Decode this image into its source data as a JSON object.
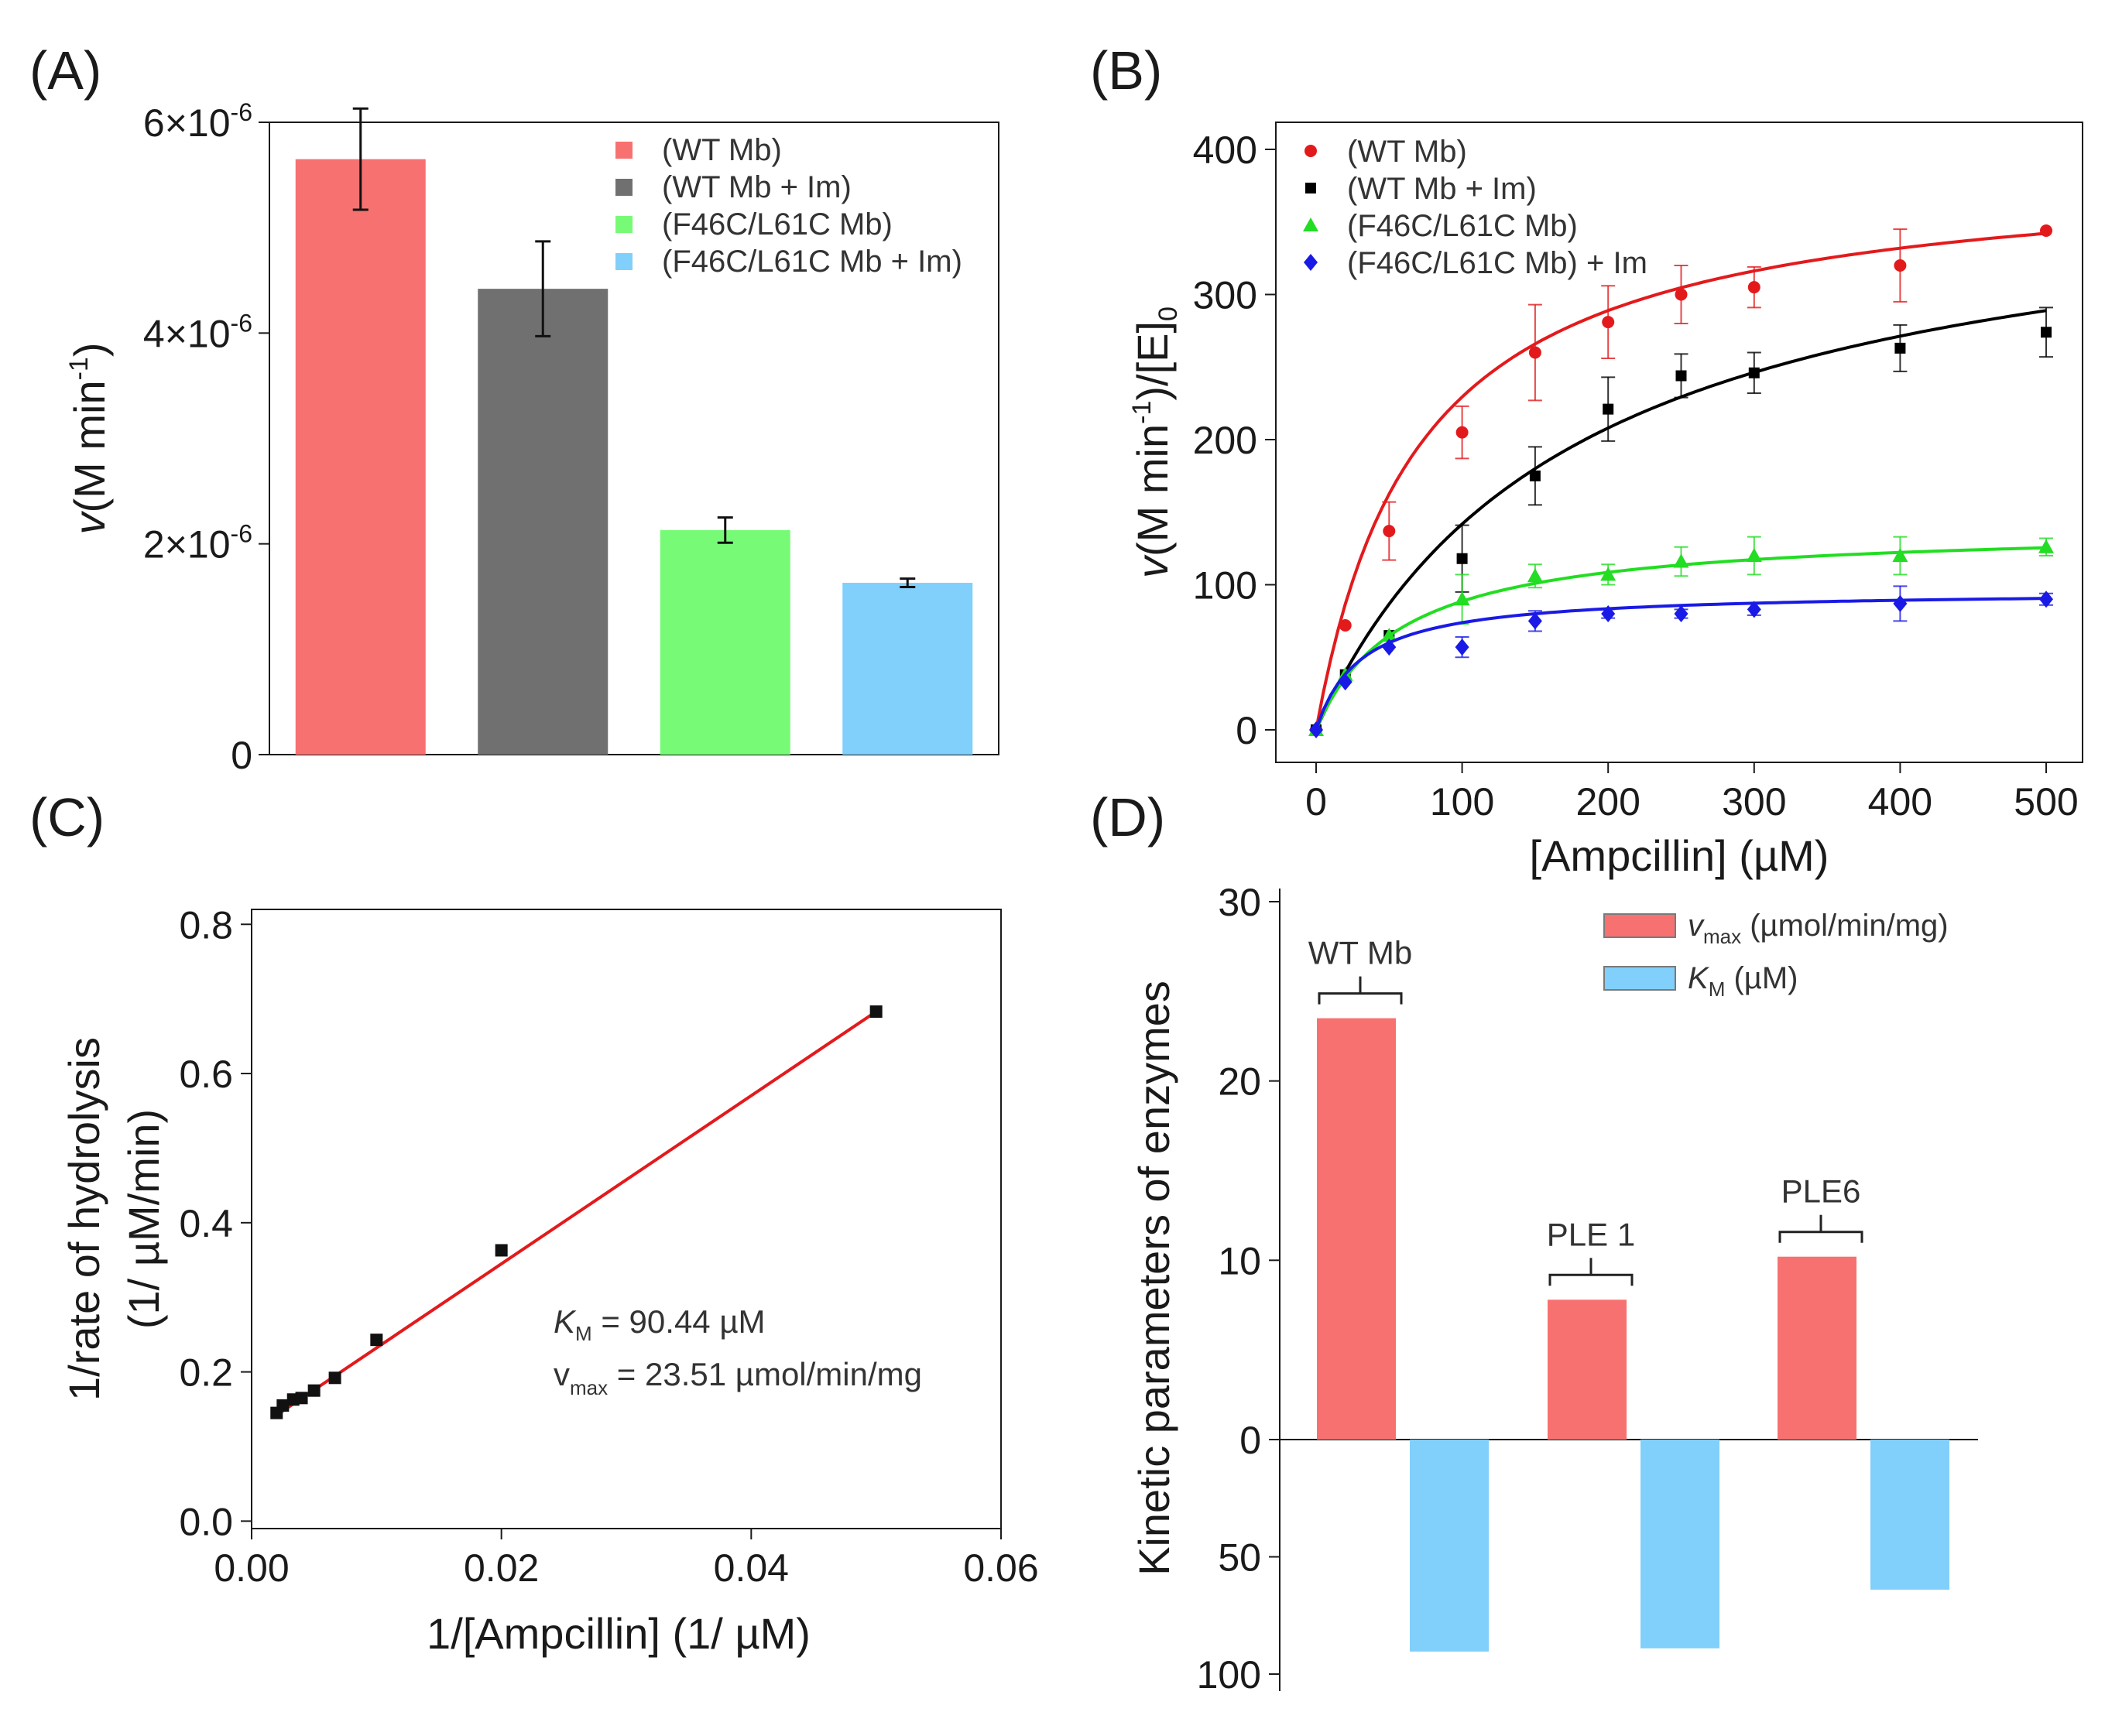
{
  "chart_data": [
    {
      "panel": "(A)",
      "type": "bar",
      "categories": [
        "(WT Mb)",
        "(WT Mb + Im)",
        "(F46C/L61C Mb)",
        "(F46C/L61C Mb + Im)"
      ],
      "values": [
        5.65e-06,
        4.42e-06,
        2.13e-06,
        1.63e-06
      ],
      "errors": [
        4.8e-07,
        4.5e-07,
        1.2e-07,
        4e-08
      ],
      "colors": [
        "#f87171",
        "#707070",
        "#77fb77",
        "#81cffb"
      ],
      "ylabel": {
        "italic": "v",
        "main": "(M min",
        "sup": "-1",
        "tail": ")"
      },
      "ylim": [
        0,
        6e-06
      ],
      "yticks": [
        {
          "value": 0,
          "text": "0",
          "exp": ""
        },
        {
          "value": 2e-06,
          "text": "2×10",
          "exp": "-6"
        },
        {
          "value": 4e-06,
          "text": "4×10",
          "exp": "-6"
        },
        {
          "value": 6e-06,
          "text": "6×10",
          "exp": "-6"
        }
      ],
      "legend": [
        "(WT Mb)",
        "(WT Mb + Im)",
        "(F46C/L61C Mb)",
        "(F46C/L61C Mb + Im)"
      ],
      "legend_position": "top-right"
    },
    {
      "panel": "(B)",
      "type": "scatter",
      "xlabel": "[Ampcillin] (µM)",
      "ylabel": {
        "italic": "v",
        "main": "(M min",
        "sup": "-1",
        "tail": ")/[E]",
        "sub": "0"
      },
      "xlim": [
        0,
        500
      ],
      "ylim": [
        0,
        400
      ],
      "xticks": [
        0,
        100,
        200,
        300,
        400,
        500
      ],
      "yticks": [
        0,
        100,
        200,
        300,
        400
      ],
      "legend_position": "top-left",
      "series": [
        {
          "name": "(WT Mb)",
          "color": "#e31a1c",
          "marker": "circle",
          "x": [
            0,
            20,
            50,
            100,
            150,
            200,
            250,
            300,
            400,
            500
          ],
          "y": [
            0,
            72,
            137,
            205,
            260,
            281,
            300,
            305,
            320,
            344
          ],
          "err": [
            0,
            0,
            20,
            18,
            33,
            25,
            20,
            14,
            25,
            0
          ],
          "fit": {
            "vmax": 390,
            "km": 70
          }
        },
        {
          "name": "(WT Mb + Im)",
          "color": "#000000",
          "marker": "square",
          "x": [
            0,
            20,
            50,
            100,
            150,
            200,
            250,
            300,
            400,
            500
          ],
          "y": [
            0,
            38,
            65,
            118,
            175,
            221,
            244,
            246,
            263,
            274
          ],
          "err": [
            0,
            0,
            0,
            23,
            20,
            22,
            15,
            14,
            16,
            17
          ],
          "fit": {
            "vmax": 390,
            "km": 175
          }
        },
        {
          "name": "(F46C/L61C Mb)",
          "color": "#22dd22",
          "marker": "triangle",
          "x": [
            0,
            20,
            50,
            100,
            150,
            200,
            250,
            300,
            400,
            500
          ],
          "y": [
            0,
            38,
            65,
            90,
            106,
            107,
            116,
            120,
            120,
            126
          ],
          "err": [
            0,
            0,
            0,
            17,
            8,
            7,
            10,
            13,
            13,
            6
          ],
          "fit": {
            "vmax": 140,
            "km": 58
          }
        },
        {
          "name": "(F46C/L61C Mb) + Im",
          "color": "#1a1ae6",
          "marker": "diamond",
          "x": [
            0,
            20,
            50,
            100,
            150,
            200,
            250,
            300,
            400,
            500
          ],
          "y": [
            0,
            33,
            57,
            57,
            75,
            80,
            80,
            83,
            87,
            90
          ],
          "err": [
            0,
            0,
            0,
            7,
            7,
            3,
            3,
            4,
            12,
            4
          ],
          "fit": {
            "vmax": 96,
            "km": 30
          }
        }
      ]
    },
    {
      "panel": "(C)",
      "type": "scatter",
      "xlabel": "1/[Ampcillin] (1/ µM)",
      "ylabel_line1": "1/rate of hydrolysis",
      "ylabel_line2": "(1/ µM/min)",
      "xlim": [
        0,
        0.06
      ],
      "ylim": [
        -0.01,
        0.82
      ],
      "xticks": [
        {
          "value": 0,
          "text": "0.00"
        },
        {
          "value": 0.02,
          "text": "0.02"
        },
        {
          "value": 0.04,
          "text": "0.04"
        },
        {
          "value": 0.06,
          "text": "0.06"
        }
      ],
      "yticks": [
        {
          "value": 0,
          "text": "0.0"
        },
        {
          "value": 0.2,
          "text": "0.2"
        },
        {
          "value": 0.4,
          "text": "0.4"
        },
        {
          "value": 0.6,
          "text": "0.6"
        },
        {
          "value": 0.8,
          "text": "0.8"
        }
      ],
      "x": [
        0.002,
        0.0025,
        0.00333,
        0.004,
        0.005,
        0.00667,
        0.01,
        0.02,
        0.05
      ],
      "y": [
        0.145,
        0.155,
        0.163,
        0.165,
        0.175,
        0.192,
        0.243,
        0.363,
        0.683
      ],
      "line": {
        "x0": 0.0018,
        "x1": 0.05,
        "intercept": 0.1195,
        "slope": 11.27,
        "color": "#e31a1c"
      },
      "annotation": {
        "km_sym": "K",
        "km_sub": "M",
        "km_text": " = 90.44 µM",
        "vmax_sym": "v",
        "vmax_sub": "max",
        "vmax_text": " = 23.51 µmol/min/mg"
      }
    },
    {
      "panel": "(D)",
      "type": "bar",
      "ylabel": "Kinetic parameters of enzymes",
      "categories": [
        "WT Mb",
        "PLE 1",
        "PLE6"
      ],
      "series": [
        {
          "name_sym": "v",
          "name_sub": "max",
          "name_text": " (µmol/min/mg)",
          "color": "#f87171",
          "values": [
            23.5,
            7.8,
            10.2
          ],
          "axis": "upper"
        },
        {
          "name_sym": "K",
          "name_sub": "M",
          "name_text": " (µM)",
          "color": "#81cffb",
          "values": [
            90.4,
            89.0,
            64.0
          ],
          "axis": "lower"
        }
      ],
      "upper_ylim": [
        0,
        30
      ],
      "lower_ylim": [
        0,
        100
      ],
      "upper_ticks": [
        0,
        10,
        20,
        30
      ],
      "lower_ticks": [
        50,
        100
      ],
      "legend_position": "top-right"
    }
  ]
}
